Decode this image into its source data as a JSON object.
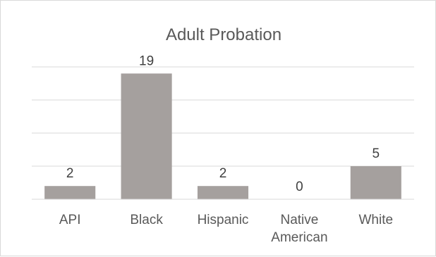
{
  "chart_data": {
    "type": "bar",
    "title": "Adult Probation",
    "categories": [
      [
        "API"
      ],
      [
        "Black"
      ],
      [
        "Hispanic"
      ],
      [
        "Native",
        "American"
      ],
      [
        "White"
      ]
    ],
    "values": [
      2,
      19,
      2,
      0,
      5
    ],
    "data_labels": [
      "2",
      "19",
      "2",
      "0",
      "5"
    ],
    "ylim": [
      0,
      20
    ],
    "gridlines": [
      5,
      10,
      15,
      20
    ],
    "grid": true,
    "y_axis_labels_shown": false,
    "legend": "none",
    "bar_color": "#a5a09e"
  }
}
